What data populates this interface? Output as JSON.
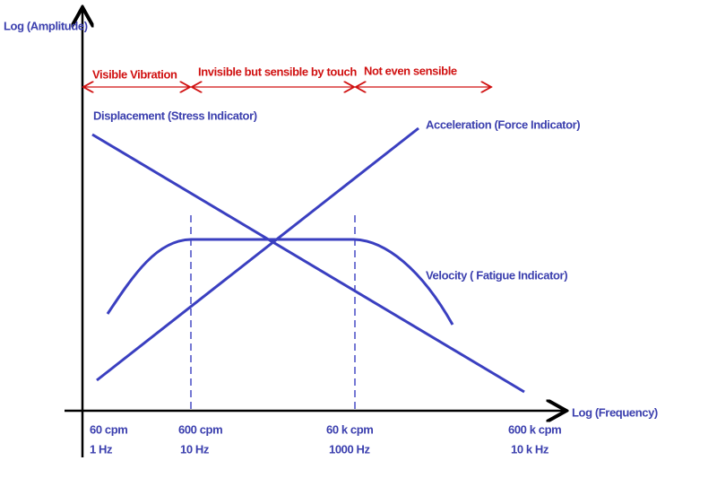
{
  "axes": {
    "y_label": "Log (Amplitude)",
    "x_label": "Log (Frequency)"
  },
  "regions": [
    "Visible Vibration",
    "Invisible but sensible by touch",
    "Not even sensible"
  ],
  "curves": [
    "Displacement (Stress Indicator)",
    "Acceleration (Force Indicator)",
    "Velocity ( Fatigue Indicator)"
  ],
  "x_ticks": [
    {
      "cpm": "60 cpm",
      "hz": "1 Hz"
    },
    {
      "cpm": "600 cpm",
      "hz": "10 Hz"
    },
    {
      "cpm": "60 k cpm",
      "hz": "1000 Hz"
    },
    {
      "cpm": "600 k cpm",
      "hz": "10 k Hz"
    }
  ]
}
